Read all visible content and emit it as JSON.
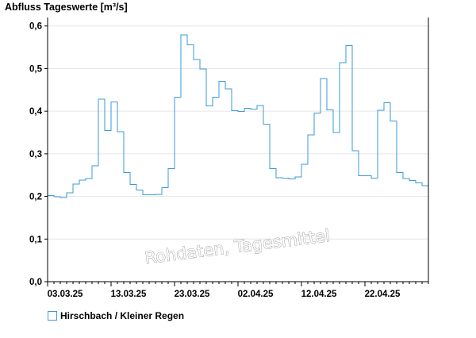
{
  "chart_data": {
    "type": "line",
    "title": "Abfluss Tageswerte [m³/s]",
    "step": true,
    "watermark": "Rohdaten, Tagesmittel",
    "ylim": [
      0,
      0.62
    ],
    "yticks": [
      {
        "value": 0.0,
        "label": "0,0"
      },
      {
        "value": 0.1,
        "label": "0,1"
      },
      {
        "value": 0.2,
        "label": "0,2"
      },
      {
        "value": 0.3,
        "label": "0,3"
      },
      {
        "value": 0.4,
        "label": "0,4"
      },
      {
        "value": 0.5,
        "label": "0,5"
      },
      {
        "value": 0.6,
        "label": "0,6"
      }
    ],
    "xrange": [
      "2025-03-03",
      "2025-05-02"
    ],
    "xticks": [
      "03.03.25",
      "13.03.25",
      "23.03.25",
      "02.04.25",
      "12.04.25",
      "22.04.25"
    ],
    "grid": true,
    "legend_position": "bottom-left",
    "series": [
      {
        "name": "Hirschbach / Kleiner Regen",
        "color": "#3a9ad9",
        "x": [
          "2025-03-03",
          "2025-03-04",
          "2025-03-05",
          "2025-03-06",
          "2025-03-07",
          "2025-03-08",
          "2025-03-09",
          "2025-03-10",
          "2025-03-11",
          "2025-03-12",
          "2025-03-13",
          "2025-03-14",
          "2025-03-15",
          "2025-03-16",
          "2025-03-17",
          "2025-03-18",
          "2025-03-19",
          "2025-03-20",
          "2025-03-21",
          "2025-03-22",
          "2025-03-23",
          "2025-03-24",
          "2025-03-25",
          "2025-03-26",
          "2025-03-27",
          "2025-03-28",
          "2025-03-29",
          "2025-03-30",
          "2025-03-31",
          "2025-04-01",
          "2025-04-02",
          "2025-04-03",
          "2025-04-04",
          "2025-04-05",
          "2025-04-06",
          "2025-04-07",
          "2025-04-08",
          "2025-04-09",
          "2025-04-10",
          "2025-04-11",
          "2025-04-12",
          "2025-04-13",
          "2025-04-14",
          "2025-04-15",
          "2025-04-16",
          "2025-04-17",
          "2025-04-18",
          "2025-04-19",
          "2025-04-20",
          "2025-04-21",
          "2025-04-22",
          "2025-04-23",
          "2025-04-24",
          "2025-04-25",
          "2025-04-26",
          "2025-04-27",
          "2025-04-28",
          "2025-04-29",
          "2025-04-30",
          "2025-05-01"
        ],
        "values": [
          0.202,
          0.199,
          0.197,
          0.209,
          0.229,
          0.238,
          0.242,
          0.272,
          0.428,
          0.355,
          0.422,
          0.352,
          0.256,
          0.228,
          0.215,
          0.204,
          0.204,
          0.205,
          0.221,
          0.265,
          0.433,
          0.579,
          0.556,
          0.521,
          0.499,
          0.412,
          0.433,
          0.47,
          0.452,
          0.401,
          0.399,
          0.407,
          0.405,
          0.413,
          0.37,
          0.265,
          0.244,
          0.243,
          0.241,
          0.246,
          0.276,
          0.344,
          0.396,
          0.477,
          0.403,
          0.35,
          0.514,
          0.554,
          0.307,
          0.249,
          0.249,
          0.243,
          0.402,
          0.42,
          0.377,
          0.256,
          0.242,
          0.237,
          0.232,
          0.225
        ]
      }
    ]
  }
}
